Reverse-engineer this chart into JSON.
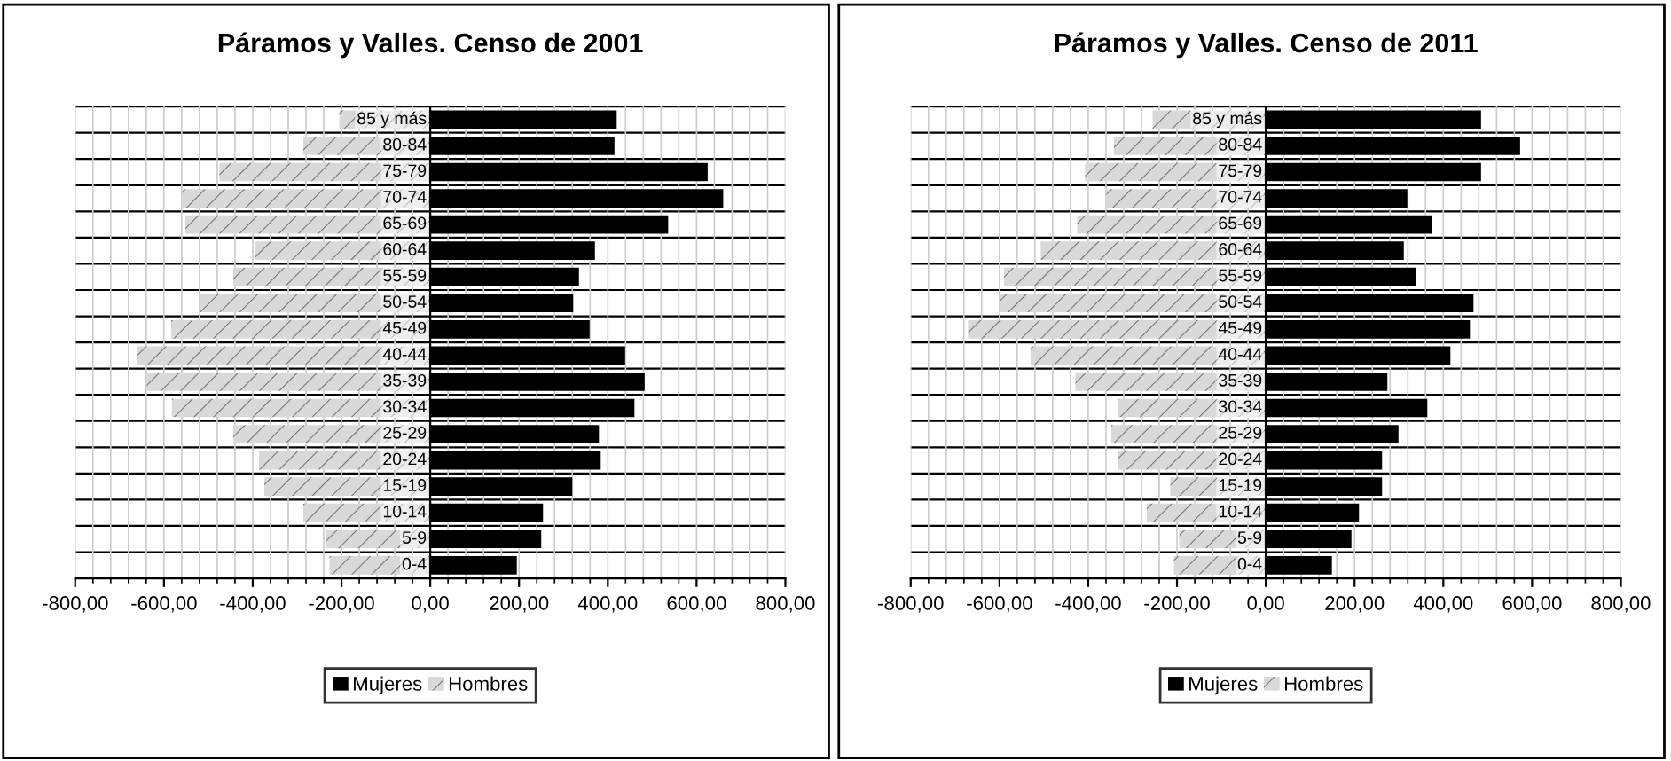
{
  "chart_data": [
    {
      "type": "bar",
      "orientation": "horizontal",
      "title": "Páramos y Valles. Censo de 2001",
      "categories": [
        "85 y más",
        "80-84",
        "75-79",
        "70-74",
        "65-69",
        "60-64",
        "55-59",
        "50-54",
        "45-49",
        "40-44",
        "35-39",
        "30-34",
        "25-29",
        "20-24",
        "15-19",
        "10-14",
        "5-9",
        "0-4"
      ],
      "series": [
        {
          "name": "Mujeres",
          "color": "#000000",
          "values": [
            420,
            415,
            625,
            660,
            536,
            371,
            335,
            322,
            359,
            439,
            483,
            460,
            380,
            384,
            320,
            254,
            250,
            195
          ]
        },
        {
          "name": "Hombres",
          "color": "#d9d9d9",
          "values": [
            -205,
            -286,
            -475,
            -559,
            -552,
            -395,
            -444,
            -520,
            -584,
            -660,
            -639,
            -582,
            -444,
            -386,
            -374,
            -286,
            -235,
            -227
          ]
        }
      ],
      "xlim": [
        -800,
        800
      ],
      "xticks": [
        {
          "value": -800,
          "label": "-800,00"
        },
        {
          "value": -600,
          "label": "-600,00"
        },
        {
          "value": -400,
          "label": "-400,00"
        },
        {
          "value": -200,
          "label": "-200,00"
        },
        {
          "value": 0,
          "label": "0,00"
        },
        {
          "value": 200,
          "label": "200,00"
        },
        {
          "value": 400,
          "label": "400,00"
        },
        {
          "value": 600,
          "label": "600,00"
        },
        {
          "value": 800,
          "label": "800,00"
        }
      ],
      "grid": true,
      "legend": "bottom",
      "stacked": true
    },
    {
      "type": "bar",
      "orientation": "horizontal",
      "title": "Páramos y Valles. Censo de 2011",
      "categories": [
        "85 y más",
        "80-84",
        "75-79",
        "70-74",
        "65-69",
        "60-64",
        "55-59",
        "50-54",
        "45-49",
        "40-44",
        "35-39",
        "30-34",
        "25-29",
        "20-24",
        "15-19",
        "10-14",
        "5-9",
        "0-4"
      ],
      "series": [
        {
          "name": "Mujeres",
          "color": "#000000",
          "values": [
            485,
            573,
            485,
            319,
            375,
            311,
            338,
            468,
            460,
            416,
            274,
            364,
            299,
            262,
            262,
            210,
            193,
            149
          ]
        },
        {
          "name": "Hombres",
          "color": "#d9d9d9",
          "values": [
            -255,
            -342,
            -407,
            -359,
            -425,
            -507,
            -590,
            -599,
            -671,
            -530,
            -429,
            -332,
            -348,
            -332,
            -215,
            -268,
            -195,
            -207
          ]
        }
      ],
      "xlim": [
        -800,
        800
      ],
      "xticks": [
        {
          "value": -800,
          "label": "-800,00"
        },
        {
          "value": -600,
          "label": "-600,00"
        },
        {
          "value": -400,
          "label": "-400,00"
        },
        {
          "value": -200,
          "label": "-200,00"
        },
        {
          "value": 0,
          "label": "0,00"
        },
        {
          "value": 200,
          "label": "200,00"
        },
        {
          "value": 400,
          "label": "400,00"
        },
        {
          "value": 600,
          "label": "600,00"
        },
        {
          "value": 800,
          "label": "800,00"
        }
      ],
      "grid": true,
      "legend": "bottom",
      "stacked": true
    }
  ]
}
